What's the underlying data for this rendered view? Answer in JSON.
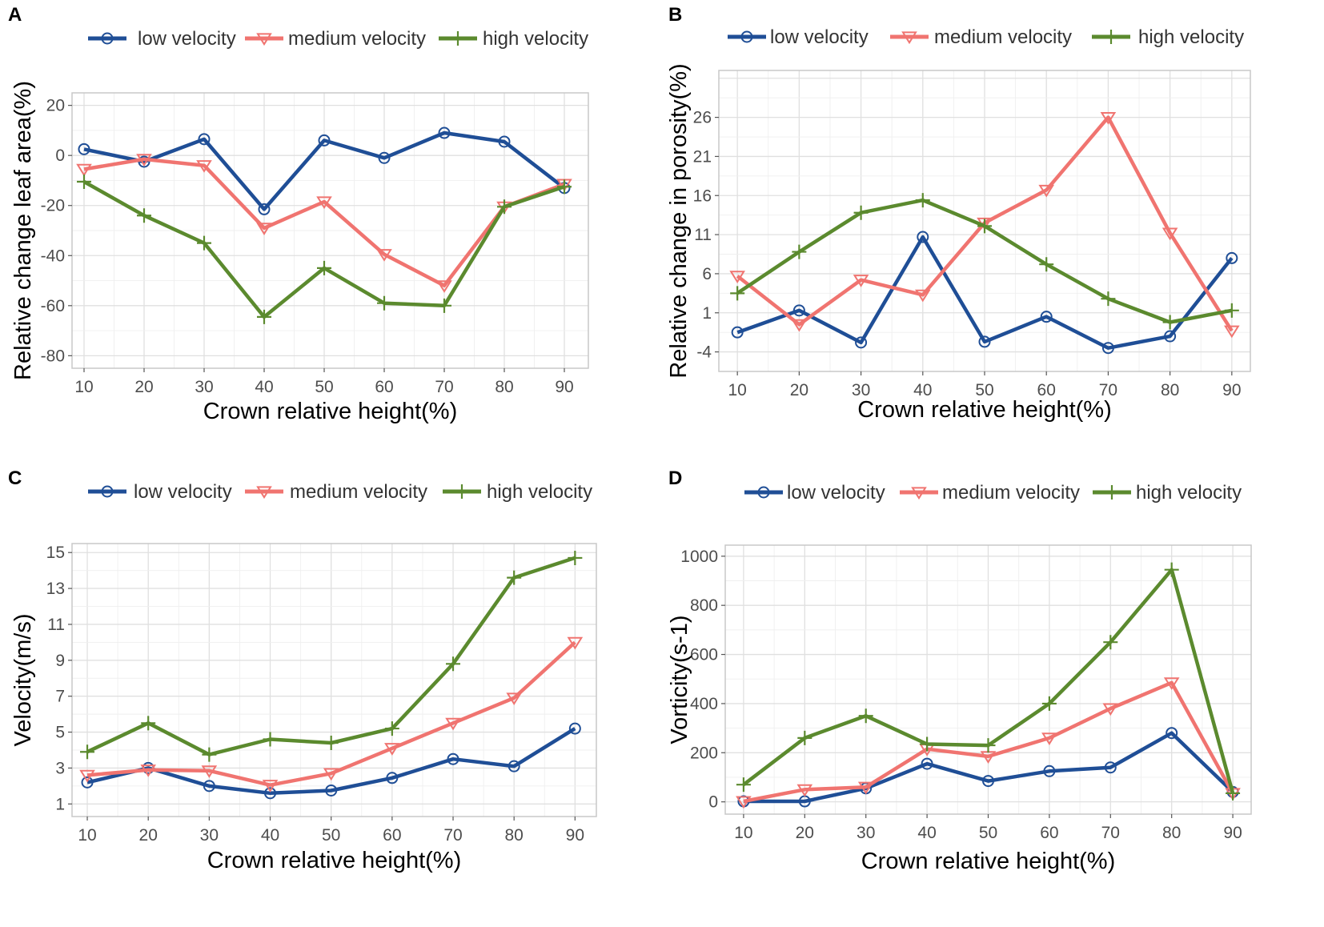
{
  "colors": {
    "low": "#1f4e96",
    "medium": "#f07470",
    "high": "#5b8a2e",
    "grid": "#e3e3e3",
    "border": "#c8c8c8"
  },
  "legend": {
    "low": "low velocity",
    "medium": "medium velocity",
    "high": "high velocity"
  },
  "legend_b": {
    "low": "low  velocity",
    "medium": "medium  velocity",
    "high": "high  velocity"
  },
  "chart_data": [
    {
      "panel": "A",
      "type": "line",
      "xlabel": "Crown relative height(%)",
      "ylabel": "Relative change leaf area(%)",
      "x": [
        10,
        20,
        30,
        40,
        50,
        60,
        70,
        80,
        90
      ],
      "xticks": [
        10,
        20,
        30,
        40,
        50,
        60,
        70,
        80,
        90
      ],
      "yticks": [
        20,
        0,
        -20,
        -40,
        -60,
        -80
      ],
      "xlim": [
        8,
        94
      ],
      "ylim": [
        -85,
        25
      ],
      "series": [
        {
          "name": "low velocity",
          "key": "low",
          "values": [
            2.5,
            -2.5,
            6.5,
            -21.5,
            6,
            -1,
            9,
            5.5,
            -13
          ]
        },
        {
          "name": "medium velocity",
          "key": "medium",
          "values": [
            -5.5,
            -1.5,
            -4,
            -29,
            -18.5,
            -39.5,
            -52,
            -20.5,
            -11.5
          ]
        },
        {
          "name": "high velocity",
          "key": "high",
          "values": [
            -10.5,
            -24,
            -35,
            -64.5,
            -45,
            -59,
            -60,
            -20.5,
            -12.5
          ]
        }
      ]
    },
    {
      "panel": "B",
      "type": "line",
      "xlabel": "Crown relative height(%)",
      "ylabel": "Relative change in porosity(%)",
      "x": [
        10,
        20,
        30,
        40,
        50,
        60,
        70,
        80,
        90
      ],
      "xticks": [
        10,
        20,
        30,
        40,
        50,
        60,
        70,
        80,
        90
      ],
      "yticks": [
        26,
        21,
        16,
        11,
        6,
        1,
        -4
      ],
      "xlim": [
        7,
        93
      ],
      "ylim": [
        -6.5,
        32
      ],
      "series": [
        {
          "name": "low velocity",
          "key": "low",
          "values": [
            -1.5,
            1.3,
            -2.8,
            10.7,
            -2.7,
            0.5,
            -3.5,
            -2,
            8
          ]
        },
        {
          "name": "medium velocity",
          "key": "medium",
          "values": [
            5.7,
            -0.5,
            5.2,
            3.3,
            12.5,
            16.7,
            26,
            11.2,
            -1.3
          ]
        },
        {
          "name": "high velocity",
          "key": "high",
          "values": [
            3.5,
            8.8,
            13.8,
            15.4,
            12.1,
            7.2,
            2.8,
            -0.2,
            1.3
          ]
        }
      ]
    },
    {
      "panel": "C",
      "type": "line",
      "xlabel": "Crown relative height(%)",
      "ylabel": "Velocity(m/s)",
      "x": [
        10,
        20,
        30,
        40,
        50,
        60,
        70,
        80,
        90
      ],
      "xticks": [
        10,
        20,
        30,
        40,
        50,
        60,
        70,
        80,
        90
      ],
      "yticks": [
        15,
        13,
        11,
        9,
        7,
        5,
        3,
        1
      ],
      "xlim": [
        7.5,
        93.5
      ],
      "ylim": [
        0.3,
        15.5
      ],
      "series": [
        {
          "name": "low velocity",
          "key": "low",
          "values": [
            2.2,
            3.0,
            2.0,
            1.6,
            1.75,
            2.45,
            3.5,
            3.1,
            5.2
          ]
        },
        {
          "name": "medium velocity",
          "key": "medium",
          "values": [
            2.6,
            2.9,
            2.85,
            2.05,
            2.7,
            4.1,
            5.5,
            6.9,
            10
          ]
        },
        {
          "name": "high velocity",
          "key": "high",
          "values": [
            3.9,
            5.5,
            3.75,
            4.6,
            4.4,
            5.2,
            8.8,
            13.6,
            14.7
          ]
        }
      ]
    },
    {
      "panel": "D",
      "type": "line",
      "xlabel": "Crown relative height(%)",
      "ylabel": "Vorticity(s-1)",
      "x": [
        10,
        20,
        30,
        40,
        50,
        60,
        70,
        80,
        90
      ],
      "xticks": [
        10,
        20,
        30,
        40,
        50,
        60,
        70,
        80,
        90
      ],
      "yticks": [
        1000,
        800,
        600,
        400,
        200,
        0
      ],
      "xlim": [
        7,
        93
      ],
      "ylim": [
        -50,
        1045
      ],
      "series": [
        {
          "name": "low velocity",
          "key": "low",
          "values": [
            2,
            2,
            55,
            155,
            85,
            125,
            140,
            280,
            40
          ]
        },
        {
          "name": "medium velocity",
          "key": "medium",
          "values": [
            2,
            50,
            60,
            215,
            185,
            260,
            380,
            485,
            35
          ]
        },
        {
          "name": "high velocity",
          "key": "high",
          "values": [
            70,
            260,
            350,
            235,
            230,
            400,
            650,
            945,
            35
          ]
        }
      ]
    }
  ]
}
